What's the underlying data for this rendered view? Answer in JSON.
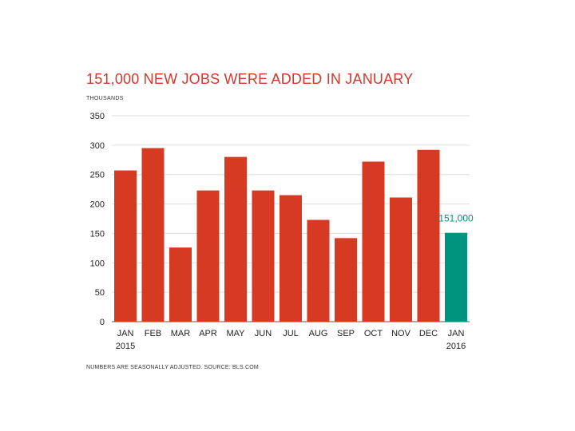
{
  "chart_data": {
    "type": "bar",
    "title": "151,000 NEW JOBS WERE ADDED IN JANUARY",
    "ylabel": "THOUSANDS",
    "footnote": "NUMBERS ARE SEASONALLY ADJUSTED. SOURCE: BLS.COM",
    "categories": [
      "JAN",
      "FEB",
      "MAR",
      "APR",
      "MAY",
      "JUN",
      "JUL",
      "AUG",
      "SEP",
      "OCT",
      "NOV",
      "DEC",
      "JAN"
    ],
    "category_sublabels": [
      "2015",
      "",
      "",
      "",
      "",
      "",
      "",
      "",
      "",
      "",
      "",
      "",
      "2016"
    ],
    "values": [
      257,
      295,
      126,
      223,
      280,
      223,
      215,
      173,
      142,
      272,
      211,
      292,
      151
    ],
    "ylim": [
      0,
      350
    ],
    "yticks": [
      0,
      50,
      100,
      150,
      200,
      250,
      300,
      350
    ],
    "grid": true,
    "colors": {
      "bar": "#d63a22",
      "highlight": "#00937e"
    },
    "highlight_index": 12,
    "annotation": {
      "index": 12,
      "text": "151,000"
    }
  }
}
